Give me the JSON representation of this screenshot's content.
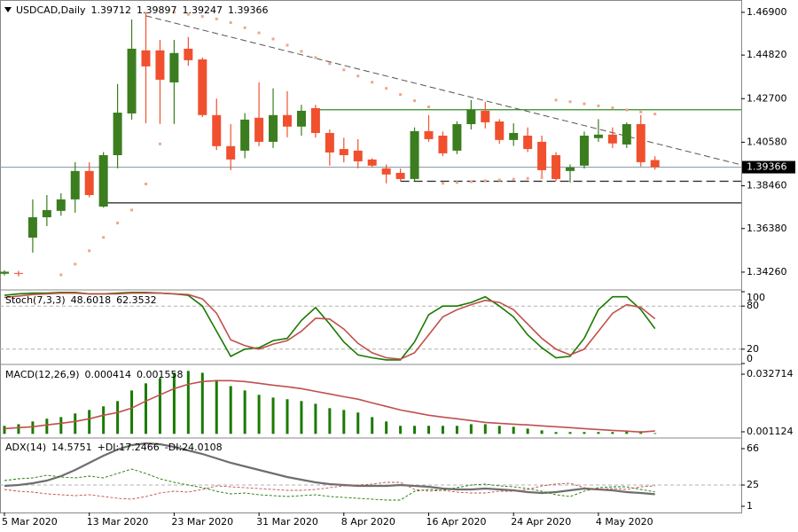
{
  "chart_data": [
    {
      "type": "candlestick",
      "title": "USDCAD,Daily",
      "categories": [
        "5 Mar 2020",
        null,
        null,
        null,
        null,
        null,
        "13 Mar 2020",
        null,
        null,
        null,
        null,
        null,
        "23 Mar 2020",
        null,
        null,
        null,
        null,
        null,
        "31 Mar 2020",
        null,
        null,
        null,
        null,
        null,
        "8 Apr 2020",
        null,
        null,
        null,
        null,
        null,
        "16 Apr 2020",
        null,
        null,
        null,
        null,
        null,
        "24 Apr 2020",
        null,
        null,
        null,
        null,
        null,
        "4 May 2020",
        null,
        null,
        null,
        null
      ],
      "open": [
        1.3418,
        1.3422,
        1.3594,
        1.3693,
        1.3724,
        1.378,
        1.3918,
        1.3745,
        1.3995,
        1.4198,
        1.4505,
        1.4505,
        1.4349,
        1.4513,
        1.4461,
        1.419,
        1.4039,
        1.4017,
        1.4177,
        1.406,
        1.419,
        1.4134,
        1.4224,
        1.4103,
        1.4025,
        1.4017,
        1.3974,
        1.3931,
        1.3909,
        1.3879,
        1.4112,
        1.409,
        1.4017,
        1.4146,
        1.4211,
        1.4159,
        1.4069,
        1.409,
        1.406,
        1.3995,
        1.3918,
        1.3944,
        1.4078,
        1.4095,
        1.4047,
        1.4146,
        1.39712
      ],
      "high": [
        1.3435,
        1.3432,
        1.378,
        1.3801,
        1.381,
        1.3961,
        1.396,
        1.401,
        1.4341,
        1.4655,
        1.469,
        1.4556,
        1.4556,
        1.457,
        1.447,
        1.427,
        1.4146,
        1.42,
        1.4349,
        1.432,
        1.4306,
        1.424,
        1.424,
        1.412,
        1.408,
        1.4073,
        1.398,
        1.395,
        1.393,
        1.413,
        1.419,
        1.411,
        1.416,
        1.4263,
        1.4254,
        1.417,
        1.415,
        1.413,
        1.409,
        1.401,
        1.395,
        1.411,
        1.417,
        1.413,
        1.4155,
        1.419,
        1.39897
      ],
      "low": [
        1.341,
        1.3405,
        1.3521,
        1.365,
        1.37,
        1.3715,
        1.379,
        1.374,
        1.3931,
        1.4168,
        1.415,
        1.4147,
        1.4147,
        1.443,
        1.418,
        1.402,
        1.3922,
        1.398,
        1.4039,
        1.403,
        1.4082,
        1.409,
        1.408,
        1.3944,
        1.396,
        1.3931,
        1.3935,
        1.3858,
        1.387,
        1.387,
        1.406,
        1.399,
        1.4,
        1.412,
        1.4125,
        1.405,
        1.404,
        1.401,
        1.3888,
        1.387,
        1.3862,
        1.393,
        1.406,
        1.403,
        1.403,
        1.394,
        1.39247
      ],
      "close": [
        1.3428,
        1.342,
        1.3693,
        1.3728,
        1.378,
        1.3918,
        1.3801,
        1.3995,
        1.4202,
        1.4513,
        1.4427,
        1.4362,
        1.4492,
        1.4457,
        1.419,
        1.4039,
        1.3974,
        1.4168,
        1.406,
        1.419,
        1.4134,
        1.4211,
        1.4103,
        1.4008,
        1.3995,
        1.3965,
        1.3944,
        1.3901,
        1.3879,
        1.4112,
        1.4073,
        1.4004,
        1.4146,
        1.4215,
        1.4155,
        1.4069,
        1.4103,
        1.4025,
        1.3922,
        1.3879,
        1.3935,
        1.409,
        1.4095,
        1.4052,
        1.4146,
        1.3961,
        1.39366
      ],
      "sar": [
        null,
        null,
        null,
        null,
        1.3413,
        1.3465,
        1.353,
        1.3595,
        1.3665,
        1.3728,
        1.3855,
        1.405,
        1.469,
        1.468,
        1.467,
        1.4658,
        1.464,
        1.4615,
        1.459,
        1.456,
        1.453,
        1.45,
        1.447,
        1.444,
        1.441,
        1.438,
        1.435,
        1.432,
        1.429,
        1.426,
        1.423,
        1.3858,
        1.3862,
        1.3866,
        1.387,
        1.3874,
        1.3878,
        1.3882,
        1.3886,
        1.4263,
        1.4255,
        1.4245,
        1.4235,
        1.4225,
        1.4215,
        1.4205,
        1.4195
      ],
      "up_color": "#3b7d1f",
      "down_color": "#f0502e",
      "sar_color": "#f2a58a",
      "hlines": [
        {
          "value": 1.4216,
          "color": "#2e8b22"
        },
        {
          "value": 1.3763,
          "color": "#333333"
        },
        {
          "value": 1.3868,
          "color": "#333333",
          "dashed": true
        }
      ],
      "trendline": [
        1.4673,
        1.3948
      ],
      "ylim": [
        1.3348,
        1.4737
      ],
      "yticks": [
        {
          "value": 1.469,
          "label": "1.46900"
        },
        {
          "value": 1.4482,
          "label": "1.44820"
        },
        {
          "value": 1.427,
          "label": "1.42700"
        },
        {
          "value": 1.4058,
          "label": "1.40580"
        },
        {
          "value": 1.3846,
          "label": "1.38460"
        },
        {
          "value": 1.3638,
          "label": "1.36380"
        },
        {
          "value": 1.3426,
          "label": "1.34260"
        }
      ]
    },
    {
      "type": "line",
      "title": "Stoch(7,3,3)",
      "series": [
        {
          "color": "#1a7a00",
          "values": [
            95,
            97,
            98,
            98,
            99,
            99,
            97,
            97,
            98,
            99,
            99,
            98,
            97,
            95,
            80,
            45,
            10,
            20,
            22,
            32,
            35,
            60,
            78,
            55,
            30,
            12,
            8,
            5,
            5,
            30,
            68,
            80,
            80,
            85,
            93,
            80,
            65,
            40,
            22,
            8,
            10,
            35,
            75,
            93,
            93,
            75,
            48.6018
          ]
        },
        {
          "color": "#c0504d",
          "values": [
            92,
            94,
            96,
            97,
            98,
            98,
            97,
            97,
            97,
            98,
            98,
            98,
            97,
            96,
            90,
            70,
            33,
            25,
            20,
            27,
            32,
            45,
            63,
            62,
            48,
            28,
            15,
            8,
            6,
            15,
            40,
            65,
            75,
            82,
            88,
            85,
            75,
            55,
            35,
            20,
            12,
            20,
            45,
            70,
            82,
            78,
            62.3532
          ]
        }
      ],
      "levels": [
        80,
        20
      ],
      "ylim": [
        0,
        100
      ],
      "yticks": [
        100,
        80,
        20,
        0
      ]
    },
    {
      "type": "bar",
      "title": "MACD(12,26,9)",
      "series": [
        {
          "kind": "bar",
          "color": "#1a7a00",
          "values": [
            0.0044,
            0.0053,
            0.0068,
            0.0083,
            0.0092,
            0.0112,
            0.0131,
            0.0151,
            0.018,
            0.0238,
            0.0277,
            0.0306,
            0.0335,
            0.0345,
            0.0335,
            0.0296,
            0.0262,
            0.0238,
            0.0214,
            0.0199,
            0.019,
            0.018,
            0.0165,
            0.0141,
            0.0131,
            0.0117,
            0.0092,
            0.0068,
            0.0044,
            0.0044,
            0.0044,
            0.0044,
            0.0044,
            0.0053,
            0.0053,
            0.0044,
            0.0039,
            0.0029,
            0.0019,
            0.001,
            0.001,
            0.001,
            0.001,
            0.001,
            0.0015,
            0.0015,
            0.000414
          ]
        },
        {
          "kind": "line",
          "color": "#c0504d",
          "values": [
            0.0029,
            0.0034,
            0.0039,
            0.0049,
            0.0058,
            0.0068,
            0.0083,
            0.0102,
            0.0117,
            0.0141,
            0.018,
            0.0214,
            0.0248,
            0.0272,
            0.0287,
            0.0292,
            0.0292,
            0.0287,
            0.0277,
            0.0267,
            0.0258,
            0.0248,
            0.0233,
            0.0219,
            0.0204,
            0.019,
            0.017,
            0.0151,
            0.0131,
            0.0117,
            0.0102,
            0.0092,
            0.0083,
            0.0073,
            0.0063,
            0.0058,
            0.0053,
            0.0049,
            0.0044,
            0.0039,
            0.0034,
            0.0029,
            0.0024,
            0.0019,
            0.0015,
            0.001,
            0.001558
          ]
        }
      ],
      "ylim": [
        -0.0013,
        0.0371
      ],
      "yticks": [
        0.032714,
        0.001124
      ]
    },
    {
      "type": "line",
      "title": "ADX(14)",
      "series": [
        {
          "color": "#6e6e6e",
          "width": 2.2,
          "values": [
            24,
            25,
            27,
            30,
            35,
            42,
            50,
            58,
            65,
            70,
            72,
            71,
            68,
            64,
            60,
            55,
            50,
            46,
            42,
            38,
            34,
            31,
            28,
            26,
            25,
            24,
            24,
            24,
            25,
            24,
            23,
            21,
            20,
            20,
            21,
            20,
            19,
            17,
            16,
            17,
            19,
            21,
            20,
            19,
            17,
            16,
            14.5751
          ]
        },
        {
          "name": "+DI:",
          "color": "#1a7a00",
          "dashed": true,
          "values": [
            30,
            32,
            33,
            36,
            34,
            33,
            35,
            33,
            38,
            43,
            38,
            32,
            28,
            25,
            22,
            18,
            15,
            16,
            14,
            13,
            12,
            13,
            14,
            12,
            11,
            10,
            9,
            8,
            8,
            18,
            20,
            19,
            22,
            25,
            26,
            24,
            23,
            21,
            18,
            14,
            12,
            18,
            22,
            23,
            23,
            20,
            17.2466
          ]
        },
        {
          "name": "-DI:",
          "color": "#c0504d",
          "dashed": true,
          "values": [
            20,
            18,
            17,
            15,
            14,
            13,
            14,
            12,
            10,
            9,
            12,
            16,
            18,
            17,
            20,
            24,
            23,
            22,
            21,
            20,
            19,
            19,
            20,
            22,
            24,
            25,
            26,
            28,
            28,
            20,
            18,
            19,
            17,
            16,
            16,
            18,
            18,
            20,
            24,
            26,
            27,
            22,
            20,
            21,
            20,
            23,
            24.0108
          ]
        }
      ],
      "levels": [
        25
      ],
      "ylim": [
        -5,
        77
      ],
      "yticks": [
        66,
        25,
        1
      ]
    }
  ]
}
